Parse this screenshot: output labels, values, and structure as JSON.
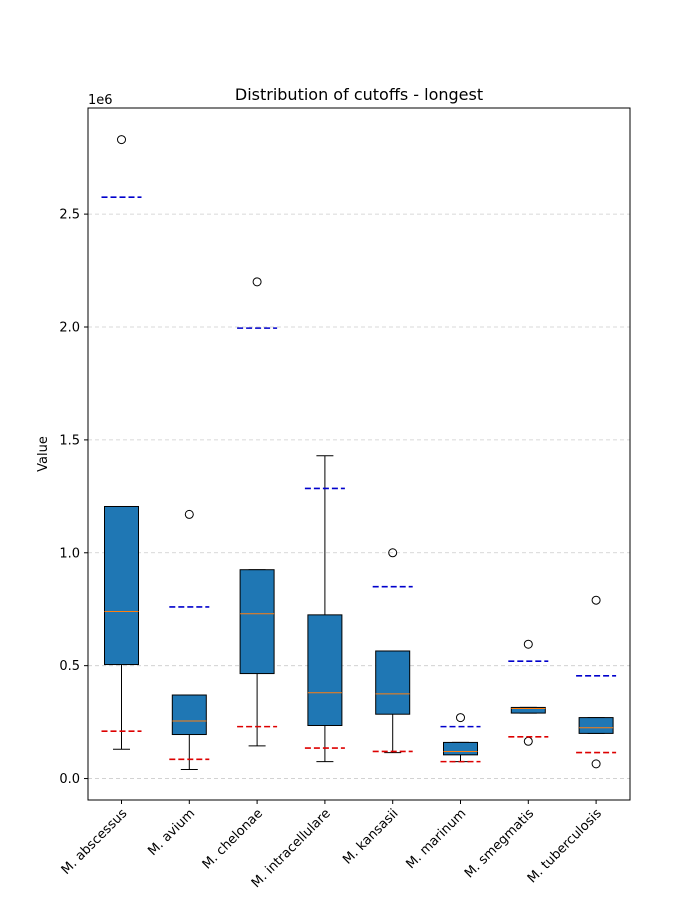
{
  "chart_data": {
    "type": "box",
    "title": "Distribution of cutoffs - longest",
    "xlabel": "",
    "ylabel": "Value",
    "y_offset_text": "1e6",
    "ylim": [
      -95000,
      2970000
    ],
    "yticks": [
      0,
      500000,
      1000000,
      1500000,
      2000000,
      2500000
    ],
    "ytick_labels": [
      "0.0",
      "0.5",
      "1.0",
      "1.5",
      "2.0",
      "2.5"
    ],
    "grid": "horizontal-dashed",
    "colors": {
      "box_fill": "#1f77b4",
      "median": "#ff7f0e",
      "upper_marker": "#0000cc",
      "lower_marker": "#dd0000",
      "grid": "#cccccc"
    },
    "categories": [
      "M. abscessus",
      "M. avium",
      "M. chelonae",
      "M. intracellulare",
      "M. kansasii",
      "M. marinum",
      "M. smegmatis",
      "M. tuberculosis"
    ],
    "boxes": [
      {
        "whisker_low": 130000,
        "q1": 505000,
        "median": 740000,
        "q3": 1205000,
        "whisker_high": 1205000,
        "outliers": [
          2830000
        ],
        "upper_marker": 2575000,
        "lower_marker": 210000
      },
      {
        "whisker_low": 40000,
        "q1": 195000,
        "median": 255000,
        "q3": 370000,
        "whisker_high": 370000,
        "outliers": [
          1170000
        ],
        "upper_marker": 760000,
        "lower_marker": 85000
      },
      {
        "whisker_low": 145000,
        "q1": 465000,
        "median": 730000,
        "q3": 925000,
        "whisker_high": 925000,
        "outliers": [
          2200000
        ],
        "upper_marker": 1995000,
        "lower_marker": 230000
      },
      {
        "whisker_low": 75000,
        "q1": 235000,
        "median": 380000,
        "q3": 725000,
        "whisker_high": 1430000,
        "outliers": [],
        "upper_marker": 1285000,
        "lower_marker": 135000
      },
      {
        "whisker_low": 115000,
        "q1": 285000,
        "median": 375000,
        "q3": 565000,
        "whisker_high": 565000,
        "outliers": [
          1000000
        ],
        "upper_marker": 850000,
        "lower_marker": 120000
      },
      {
        "whisker_low": 75000,
        "q1": 105000,
        "median": 120000,
        "q3": 160000,
        "whisker_high": 160000,
        "outliers": [
          270000
        ],
        "upper_marker": 230000,
        "lower_marker": 75000
      },
      {
        "whisker_low": 290000,
        "q1": 290000,
        "median": 310000,
        "q3": 315000,
        "whisker_high": 315000,
        "outliers": [
          595000,
          165000
        ],
        "upper_marker": 520000,
        "lower_marker": 185000
      },
      {
        "whisker_low": 200000,
        "q1": 200000,
        "median": 225000,
        "q3": 270000,
        "whisker_high": 270000,
        "outliers": [
          790000,
          65000
        ],
        "upper_marker": 455000,
        "lower_marker": 115000
      }
    ]
  }
}
